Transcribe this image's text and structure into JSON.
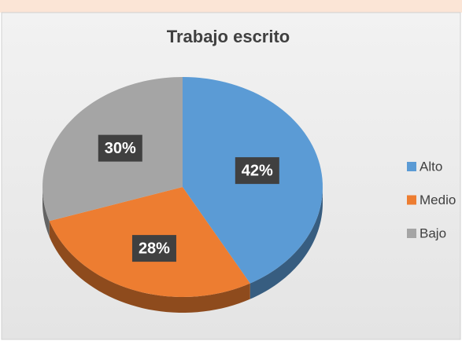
{
  "chart_data": {
    "type": "pie",
    "title": "Trabajo escrito",
    "categories": [
      "Alto",
      "Medio",
      "Bajo"
    ],
    "values": [
      42,
      28,
      30
    ],
    "value_labels": [
      "42%",
      "28%",
      "30%"
    ],
    "colors": [
      "#5b9bd5",
      "#ed7d31",
      "#a5a5a5"
    ],
    "legend": "right"
  }
}
